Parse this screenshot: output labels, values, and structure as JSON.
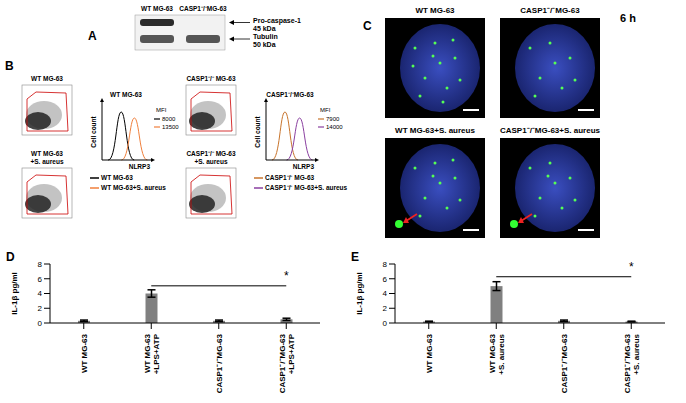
{
  "figure": {
    "A": {
      "panel": "A",
      "lanes": [
        "WT MG-63",
        "CASP1⁻/⁻MG-63"
      ],
      "bands": [
        {
          "name": "Pro-caspase-1",
          "size": "45 kDa",
          "present": [
            true,
            false
          ]
        },
        {
          "name": "Tubulin",
          "size": "50 kDa",
          "present": [
            true,
            true
          ]
        }
      ]
    },
    "B": {
      "panel": "B",
      "groups": [
        {
          "dot_plots": [
            "WT MG-63",
            "WT MG-63 +S. aureus"
          ],
          "histogram": {
            "title": "WT MG-63",
            "y_label": "Cell count",
            "x_label": "NLRP3",
            "mfi_label": "MFI",
            "series": [
              {
                "name": "WT MG-63",
                "color": "#000000",
                "mfi": 8000
              },
              {
                "name": "WT MG-63+S. aureus",
                "color": "#f07f3c",
                "mfi": 13500
              }
            ]
          }
        },
        {
          "dot_plots": [
            "CASP1⁻/⁻ MG-63",
            "CASP1⁻/⁻ MG-63 +S. aureus"
          ],
          "histogram": {
            "title": "CASP1⁻/⁻MG-63",
            "y_label": "Cell count",
            "x_label": "NLRP3",
            "mfi_label": "MFI",
            "series": [
              {
                "name": "CASP1⁻/⁻ MG-63",
                "color": "#c8742c",
                "mfi": 7900
              },
              {
                "name": "CASP1⁻/⁻ MG-63+S. aureus",
                "color": "#8a3fa0",
                "mfi": 14000
              }
            ]
          }
        }
      ]
    },
    "C": {
      "panel": "C",
      "time": "6 h",
      "images": [
        "WT MG-63",
        "CASP1⁻/⁻MG-63",
        "WT MG-63+S. aureus",
        "CASP1⁻/⁻MG-63+S. aureus"
      ]
    }
  },
  "chart_data": [
    {
      "type": "bar",
      "panel": "D",
      "y_label": "IL-1β pg/ml",
      "categories": [
        "WT MG-63",
        "WT MG-63 +LPS+ATP",
        "CASP1⁻/⁻MG-63",
        "CASP1⁻/⁻MG-63 +LPS+ATP"
      ],
      "values": [
        0.3,
        4,
        0.3,
        0.5
      ],
      "errors": [
        0.1,
        0.5,
        0.1,
        0.15
      ],
      "color": "#808080",
      "ylim": [
        0,
        8
      ],
      "yticks": [
        0,
        2,
        4,
        6,
        8
      ],
      "annotations": [
        {
          "text": "*",
          "between": [
            "WT MG-63 +LPS+ATP",
            "CASP1⁻/⁻MG-63 +LPS+ATP"
          ]
        }
      ]
    },
    {
      "type": "bar",
      "panel": "E",
      "y_label": "IL-1β pg/ml",
      "categories": [
        "WT MG-63",
        "WT MG-63 +S. aureus",
        "CASP1⁻/⁻MG-63",
        "CASP1⁻/⁻MG-63 +S. aureus"
      ],
      "values": [
        0.2,
        5,
        0.3,
        0.2
      ],
      "errors": [
        0.05,
        0.6,
        0.1,
        0.05
      ],
      "color": "#808080",
      "ylim": [
        0,
        8
      ],
      "yticks": [
        0,
        2,
        4,
        6,
        8
      ],
      "annotations": [
        {
          "text": "*",
          "between": [
            "WT MG-63 +S. aureus",
            "CASP1⁻/⁻MG-63 +S. aureus"
          ]
        }
      ]
    }
  ]
}
